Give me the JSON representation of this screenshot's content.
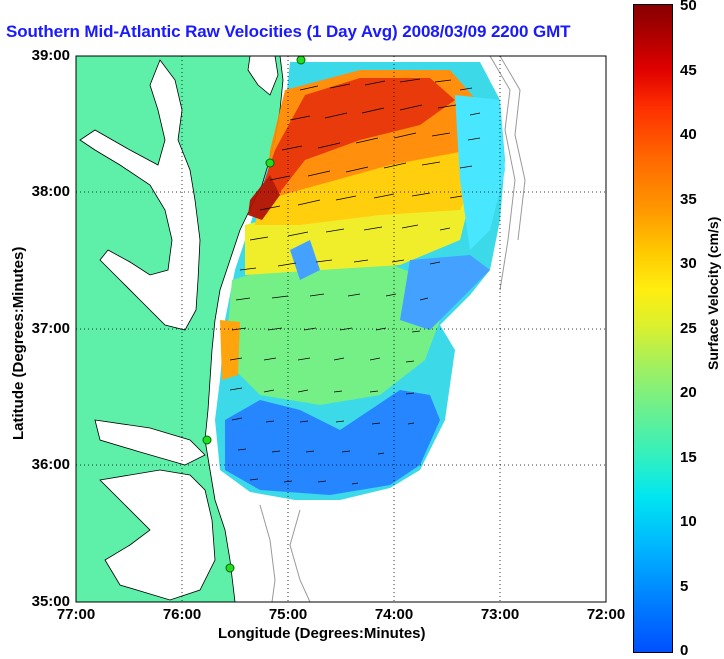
{
  "title": "Southern Mid-Atlantic Raw Velocities (1 Day Avg) 2008/03/09 2200 GMT",
  "axes": {
    "xlabel": "Longitude (Degrees:Minutes)",
    "ylabel": "Latitude (Degrees:Minutes)",
    "x_ticks": [
      "77:00",
      "76:00",
      "75:00",
      "74:00",
      "73:00",
      "72:00"
    ],
    "y_ticks": [
      "39:00",
      "38:00",
      "37:00",
      "36:00",
      "35:00"
    ],
    "grid": "dotted"
  },
  "colorbar": {
    "label": "Surface Velocity (cm/s)",
    "ticks": [
      "50",
      "45",
      "40",
      "35",
      "30",
      "25",
      "20",
      "15",
      "10",
      "5",
      "0"
    ],
    "range": [
      0,
      50
    ]
  },
  "colors": {
    "land": "#5ef0a8",
    "water": "#ffffff",
    "title": "#1a1aff",
    "station": "#22dd22"
  },
  "chart_data": {
    "type": "heatmap",
    "x_unit": "degrees west longitude",
    "y_unit": "degrees north latitude",
    "xlim": [
      72,
      77
    ],
    "ylim": [
      35,
      39
    ],
    "stations": [
      {
        "lon": 74.9,
        "lat": 39.0
      },
      {
        "lon": 75.15,
        "lat": 38.22
      },
      {
        "lon": 75.75,
        "lat": 36.2
      },
      {
        "lon": 75.55,
        "lat": 35.25
      }
    ]
  }
}
